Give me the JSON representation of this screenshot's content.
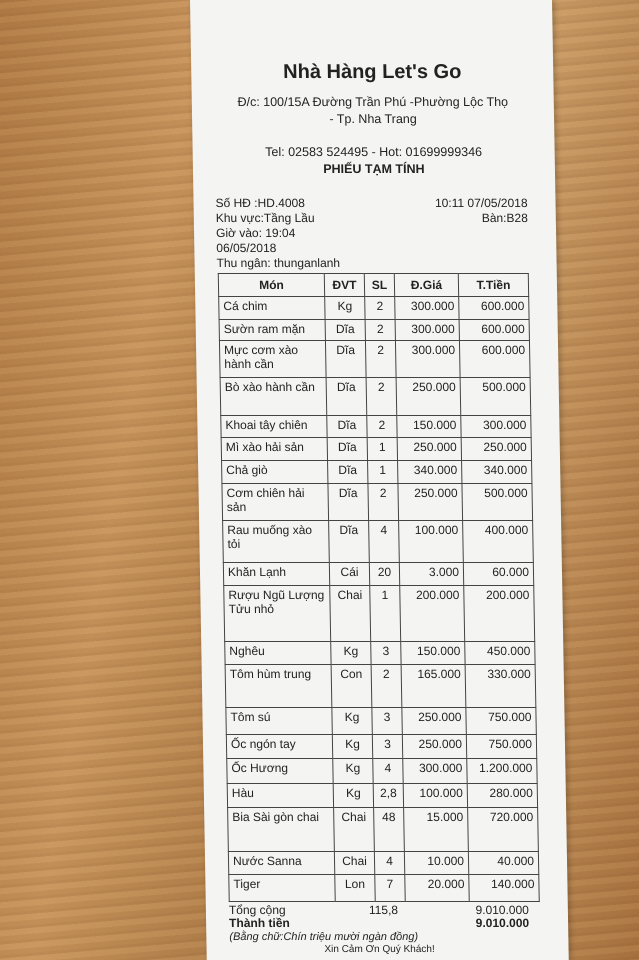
{
  "header": {
    "title": "Nhà Hàng Let's Go",
    "address_line1": "Đ/c: 100/15A Đường Trần Phú -Phường Lộc Thọ",
    "address_line2": "- Tp. Nha Trang",
    "tel": "Tel: 02583 524495 - Hot: 01699999346",
    "slip_title": "PHIẾU TẠM TÍNH"
  },
  "info": {
    "invoice": "Số HĐ :HD.4008",
    "area": "Khu vực:Tầng Lầu",
    "checkin": "Giờ vào: 19:04",
    "checkin_date": "06/05/2018",
    "cashier": "Thu ngân: thunganlanh",
    "datetime": "10:11 07/05/2018",
    "table": "Bàn:B28"
  },
  "columns": [
    "Món",
    "ĐVT",
    "SL",
    "Đ.Giá",
    "T.Tiền"
  ],
  "items": [
    [
      "Cá chim",
      "Kg",
      "2",
      "300.000",
      "600.000"
    ],
    [
      "Sườn ram mặn",
      "Dĩa",
      "2",
      "300.000",
      "600.000"
    ],
    [
      "Mực cơm xào hành cần",
      "Dĩa",
      "2",
      "300.000",
      "600.000"
    ],
    [
      "Bò xào hành cần",
      "Dĩa",
      "2",
      "250.000",
      "500.000"
    ],
    [
      "Khoai tây chiên",
      "Dĩa",
      "2",
      "150.000",
      "300.000"
    ],
    [
      "Mì xào hải sản",
      "Dĩa",
      "1",
      "250.000",
      "250.000"
    ],
    [
      "Chả giò",
      "Dĩa",
      "1",
      "340.000",
      "340.000"
    ],
    [
      "Cơm chiên hải sản",
      "Dĩa",
      "2",
      "250.000",
      "500.000"
    ],
    [
      "Rau muống xào tỏi",
      "Dĩa",
      "4",
      "100.000",
      "400.000"
    ],
    [
      "Khăn Lạnh",
      "Cái",
      "20",
      "3.000",
      "60.000"
    ],
    [
      "Rượu Ngũ Lượng Tửu nhỏ",
      "Chai",
      "1",
      "200.000",
      "200.000"
    ],
    [
      "Nghêu",
      "Kg",
      "3",
      "150.000",
      "450.000"
    ],
    [
      "Tôm hùm trung",
      "Con",
      "2",
      "165.000",
      "330.000"
    ],
    [
      "Tôm sú",
      "Kg",
      "3",
      "250.000",
      "750.000"
    ],
    [
      "Ốc ngón tay",
      "Kg",
      "3",
      "250.000",
      "750.000"
    ],
    [
      "Ốc Hương",
      "Kg",
      "4",
      "300.000",
      "1.200.000"
    ],
    [
      "Hàu",
      "Kg",
      "2,8",
      "100.000",
      "280.000"
    ],
    [
      "Bia Sài gòn chai",
      "Chai",
      "48",
      "15.000",
      "720.000"
    ],
    [
      "Nước Sanna",
      "Chai",
      "4",
      "10.000",
      "40.000"
    ],
    [
      "Tiger",
      "Lon",
      "7",
      "20.000",
      "140.000"
    ]
  ],
  "totals": {
    "label": "Tổng cộng",
    "qty": "115,8",
    "amount": "9.010.000",
    "final_label": "Thành tiền",
    "final_amount": "9.010.000",
    "in_words": "(Bằng chữ:Chín triệu mười ngàn đồng)",
    "thanks": "Xin Cảm Ơn Quý Khách!"
  }
}
